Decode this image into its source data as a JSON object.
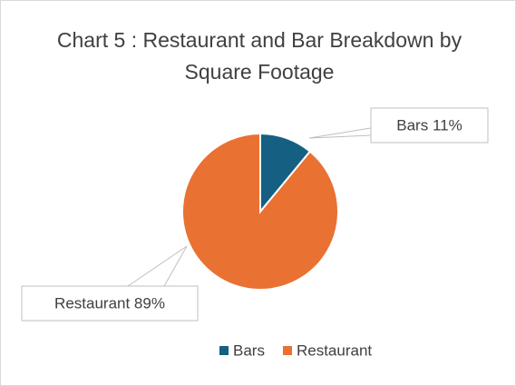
{
  "chart_data": {
    "type": "pie",
    "title": "Chart 5 : Restaurant and Bar Breakdown by Square Footage",
    "categories": [
      "Bars",
      "Restaurant"
    ],
    "values": [
      11,
      89
    ],
    "value_labels": [
      "Bars 11%",
      "Restaurant 89%"
    ],
    "colors": [
      "#156082",
      "#e97132"
    ],
    "legend": "bottom"
  }
}
